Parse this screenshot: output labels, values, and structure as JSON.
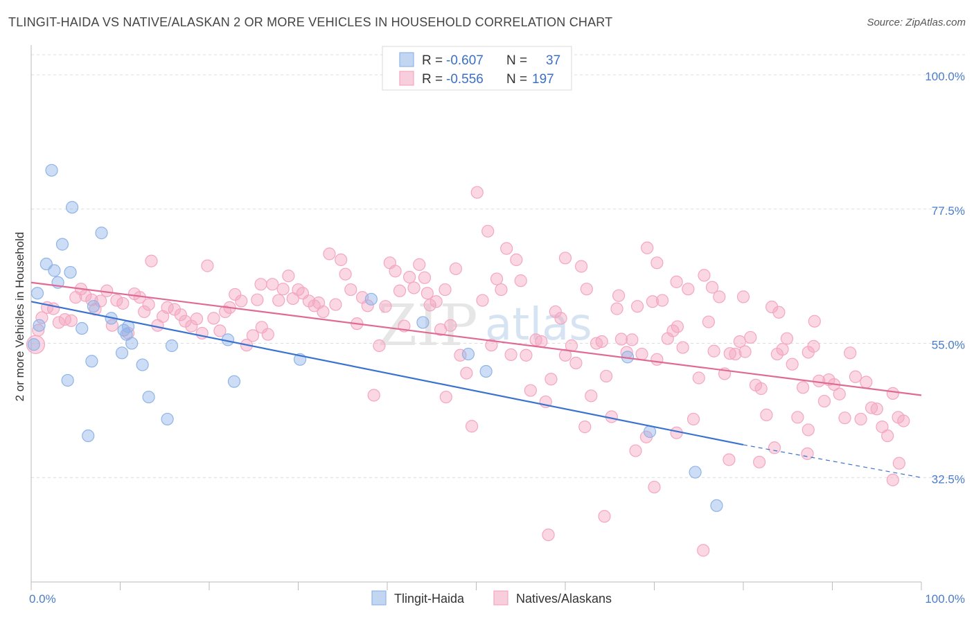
{
  "header": {
    "title": "TLINGIT-HAIDA VS NATIVE/ALASKAN 2 OR MORE VEHICLES IN HOUSEHOLD CORRELATION CHART",
    "source": "Source: ZipAtlas.com"
  },
  "watermark": {
    "zip": "ZIP",
    "atlas": "atlas"
  },
  "legend": {
    "r_label": "R =",
    "n_label": "N =",
    "rows": [
      {
        "r": "-0.607",
        "n": "37",
        "color": "#8fb4e8"
      },
      {
        "r": "-0.556",
        "n": "197",
        "color": "#f4a6c0"
      }
    ]
  },
  "bottom_legend": [
    "Tlingit-Haida",
    "Natives/Alaskans"
  ],
  "chart_data": {
    "type": "scatter",
    "ylabel": "2 or more Vehicles in Household",
    "xlim": [
      0,
      100
    ],
    "ylim": [
      15,
      105
    ],
    "y_ticks": [
      {
        "value": 100.0,
        "label": "100.0%"
      },
      {
        "value": 77.5,
        "label": "77.5%"
      },
      {
        "value": 55.0,
        "label": "55.0%"
      },
      {
        "value": 32.5,
        "label": "32.5%"
      }
    ],
    "x_tick_labels": [
      {
        "value": 0,
        "label": "0.0%"
      },
      {
        "value": 100,
        "label": "100.0%"
      }
    ],
    "grid": true,
    "series": [
      {
        "name": "Tlingit-Haida",
        "color": "#8fb4e8",
        "line_color": "#3a72d0",
        "trend": {
          "x0": 0,
          "y0": 62.0,
          "x1": 80,
          "y1": 38.0,
          "dash_to_x": 100,
          "dash_to_y": 32.5
        },
        "points": [
          [
            2.3,
            84.0
          ],
          [
            4.6,
            77.8
          ],
          [
            7.9,
            73.5
          ],
          [
            3.5,
            71.6
          ],
          [
            1.7,
            68.3
          ],
          [
            2.6,
            67.2
          ],
          [
            4.4,
            66.9
          ],
          [
            3.0,
            65.2
          ],
          [
            0.7,
            63.4
          ],
          [
            7.0,
            61.2
          ],
          [
            9.0,
            59.2
          ],
          [
            0.9,
            58.0
          ],
          [
            5.7,
            57.5
          ],
          [
            10.7,
            56.5
          ],
          [
            10.9,
            57.8
          ],
          [
            11.3,
            55.0
          ],
          [
            15.8,
            54.6
          ],
          [
            10.2,
            53.4
          ],
          [
            6.8,
            52.0
          ],
          [
            12.5,
            51.4
          ],
          [
            4.1,
            48.8
          ],
          [
            22.1,
            55.6
          ],
          [
            22.8,
            48.6
          ],
          [
            30.2,
            52.3
          ],
          [
            13.2,
            46.0
          ],
          [
            15.3,
            42.3
          ],
          [
            6.4,
            39.5
          ],
          [
            38.2,
            62.4
          ],
          [
            44.0,
            58.5
          ],
          [
            49.1,
            53.2
          ],
          [
            51.1,
            50.3
          ],
          [
            67.0,
            52.7
          ],
          [
            69.5,
            40.2
          ],
          [
            74.6,
            33.4
          ],
          [
            77.0,
            27.8
          ],
          [
            0.3,
            54.8
          ],
          [
            10.4,
            57.2
          ]
        ]
      },
      {
        "name": "Natives/Alaskans",
        "color": "#f4a6c0",
        "line_color": "#e06a96",
        "trend": {
          "x0": 0,
          "y0": 65.2,
          "x1": 100,
          "y1": 46.3
        },
        "points": [
          [
            0.5,
            54.8
          ],
          [
            0.8,
            57.2
          ],
          [
            1.2,
            59.3
          ],
          [
            1.8,
            61.0
          ],
          [
            2.5,
            60.8
          ],
          [
            3.1,
            58.5
          ],
          [
            3.8,
            59.0
          ],
          [
            4.5,
            58.8
          ],
          [
            5.0,
            62.7
          ],
          [
            5.6,
            64.1
          ],
          [
            6.1,
            63.0
          ],
          [
            6.8,
            62.3
          ],
          [
            7.2,
            60.7
          ],
          [
            7.8,
            62.1
          ],
          [
            8.5,
            63.8
          ],
          [
            9.1,
            58.0
          ],
          [
            9.6,
            62.2
          ],
          [
            10.3,
            61.7
          ],
          [
            10.9,
            56.7
          ],
          [
            11.6,
            63.3
          ],
          [
            12.2,
            62.7
          ],
          [
            12.7,
            60.3
          ],
          [
            13.2,
            61.5
          ],
          [
            13.5,
            68.8
          ],
          [
            14.2,
            58.0
          ],
          [
            14.8,
            59.5
          ],
          [
            15.3,
            61.0
          ],
          [
            16.1,
            60.7
          ],
          [
            16.8,
            59.8
          ],
          [
            17.3,
            58.7
          ],
          [
            18.0,
            57.9
          ],
          [
            18.6,
            59.1
          ],
          [
            19.2,
            56.7
          ],
          [
            19.8,
            68.0
          ],
          [
            20.5,
            59.2
          ],
          [
            21.2,
            57.1
          ],
          [
            21.8,
            60.3
          ],
          [
            22.3,
            61.0
          ],
          [
            22.9,
            63.2
          ],
          [
            23.6,
            62.1
          ],
          [
            24.2,
            54.7
          ],
          [
            24.9,
            56.3
          ],
          [
            25.4,
            62.3
          ],
          [
            25.9,
            57.7
          ],
          [
            26.6,
            56.5
          ],
          [
            27.1,
            64.9
          ],
          [
            27.8,
            62.2
          ],
          [
            28.3,
            64.1
          ],
          [
            28.9,
            66.3
          ],
          [
            29.4,
            62.5
          ],
          [
            30.0,
            64.0
          ],
          [
            30.5,
            63.4
          ],
          [
            31.2,
            62.1
          ],
          [
            31.8,
            61.3
          ],
          [
            32.3,
            61.8
          ],
          [
            32.8,
            60.3
          ],
          [
            33.5,
            70.0
          ],
          [
            34.2,
            61.5
          ],
          [
            34.8,
            69.0
          ],
          [
            35.3,
            66.6
          ],
          [
            35.9,
            64.0
          ],
          [
            36.6,
            58.3
          ],
          [
            37.2,
            62.7
          ],
          [
            37.8,
            61.3
          ],
          [
            38.5,
            46.3
          ],
          [
            39.1,
            54.6
          ],
          [
            39.8,
            61.2
          ],
          [
            40.3,
            68.5
          ],
          [
            40.9,
            67.1
          ],
          [
            41.4,
            63.8
          ],
          [
            41.9,
            57.9
          ],
          [
            42.5,
            66.1
          ],
          [
            43.0,
            64.3
          ],
          [
            43.6,
            68.2
          ],
          [
            44.2,
            66.0
          ],
          [
            44.8,
            61.4
          ],
          [
            45.5,
            62.0
          ],
          [
            46.0,
            57.3
          ],
          [
            46.6,
            46.0
          ],
          [
            47.1,
            58.0
          ],
          [
            47.7,
            67.5
          ],
          [
            48.2,
            53.0
          ],
          [
            48.9,
            50.0
          ],
          [
            49.5,
            41.1
          ],
          [
            50.1,
            80.3
          ],
          [
            50.7,
            62.2
          ],
          [
            51.3,
            73.8
          ],
          [
            51.7,
            54.7
          ],
          [
            52.3,
            65.8
          ],
          [
            52.8,
            64.0
          ],
          [
            53.4,
            70.9
          ],
          [
            53.9,
            53.1
          ],
          [
            54.5,
            69.0
          ],
          [
            55.0,
            65.5
          ],
          [
            55.6,
            53.0
          ],
          [
            56.1,
            47.1
          ],
          [
            56.7,
            55.6
          ],
          [
            57.3,
            55.3
          ],
          [
            57.8,
            45.2
          ],
          [
            58.4,
            49.0
          ],
          [
            58.9,
            60.3
          ],
          [
            59.5,
            59.2
          ],
          [
            60.0,
            53.0
          ],
          [
            60.7,
            54.6
          ],
          [
            61.2,
            51.7
          ],
          [
            61.8,
            67.9
          ],
          [
            62.4,
            64.1
          ],
          [
            62.9,
            46.2
          ],
          [
            63.5,
            55.0
          ],
          [
            64.1,
            55.3
          ],
          [
            64.6,
            49.5
          ],
          [
            65.2,
            42.7
          ],
          [
            65.8,
            60.8
          ],
          [
            66.3,
            55.7
          ],
          [
            66.9,
            53.5
          ],
          [
            67.5,
            55.6
          ],
          [
            68.1,
            61.2
          ],
          [
            68.6,
            53.2
          ],
          [
            69.2,
            71.0
          ],
          [
            69.8,
            62.0
          ],
          [
            70.3,
            52.3
          ],
          [
            70.9,
            62.2
          ],
          [
            71.5,
            55.8
          ],
          [
            72.1,
            57.1
          ],
          [
            72.6,
            57.8
          ],
          [
            73.2,
            54.3
          ],
          [
            73.8,
            64.1
          ],
          [
            74.4,
            42.3
          ],
          [
            75.0,
            49.2
          ],
          [
            75.6,
            66.4
          ],
          [
            76.1,
            58.6
          ],
          [
            76.7,
            53.7
          ],
          [
            77.3,
            62.8
          ],
          [
            77.9,
            49.9
          ],
          [
            78.5,
            53.3
          ],
          [
            79.1,
            53.2
          ],
          [
            79.6,
            55.3
          ],
          [
            80.2,
            53.6
          ],
          [
            80.8,
            56.0
          ],
          [
            81.4,
            48.0
          ],
          [
            82.0,
            47.4
          ],
          [
            82.6,
            43.0
          ],
          [
            83.2,
            61.1
          ],
          [
            83.8,
            53.2
          ],
          [
            84.4,
            54.0
          ],
          [
            84.9,
            55.8
          ],
          [
            85.5,
            51.5
          ],
          [
            86.1,
            42.6
          ],
          [
            86.7,
            47.6
          ],
          [
            87.3,
            53.5
          ],
          [
            87.9,
            54.5
          ],
          [
            88.5,
            48.7
          ],
          [
            89.1,
            45.3
          ],
          [
            89.6,
            48.9
          ],
          [
            90.2,
            48.1
          ],
          [
            90.8,
            46.5
          ],
          [
            91.4,
            42.5
          ],
          [
            92.0,
            53.4
          ],
          [
            92.6,
            49.4
          ],
          [
            93.2,
            42.3
          ],
          [
            93.8,
            48.5
          ],
          [
            94.4,
            44.2
          ],
          [
            95.0,
            44.0
          ],
          [
            95.6,
            41.0
          ],
          [
            96.2,
            39.5
          ],
          [
            96.8,
            46.6
          ],
          [
            97.4,
            42.6
          ],
          [
            98.0,
            42.0
          ],
          [
            60.0,
            69.3
          ],
          [
            66.0,
            63.0
          ],
          [
            70.3,
            68.5
          ],
          [
            72.5,
            65.3
          ],
          [
            76.5,
            64.4
          ],
          [
            80.0,
            62.8
          ],
          [
            84.0,
            60.2
          ],
          [
            88.0,
            58.7
          ],
          [
            44.5,
            63.4
          ],
          [
            46.5,
            64.0
          ],
          [
            25.8,
            64.9
          ],
          [
            64.4,
            26.0
          ],
          [
            58.1,
            22.9
          ],
          [
            67.9,
            37.0
          ],
          [
            70.0,
            30.9
          ],
          [
            75.5,
            20.3
          ],
          [
            78.4,
            35.5
          ],
          [
            83.5,
            37.5
          ],
          [
            87.2,
            36.5
          ],
          [
            96.8,
            32.1
          ],
          [
            97.5,
            34.9
          ],
          [
            81.8,
            35.1
          ],
          [
            72.5,
            40.0
          ],
          [
            69.1,
            39.3
          ],
          [
            62.2,
            41.0
          ],
          [
            87.3,
            40.5
          ]
        ]
      }
    ]
  }
}
